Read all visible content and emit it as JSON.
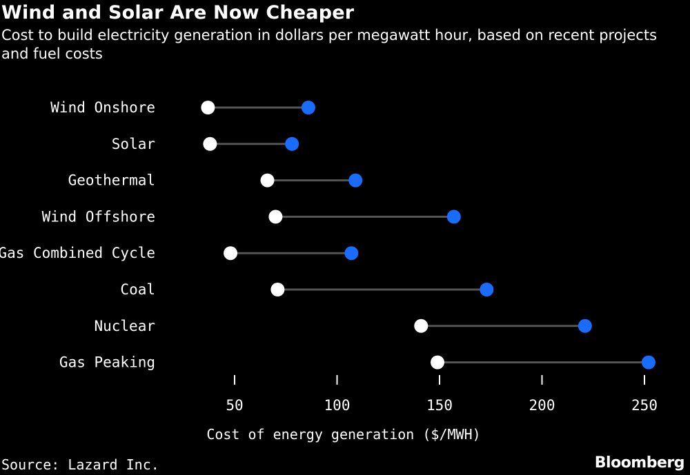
{
  "title": "Wind and Solar Are Now Cheaper",
  "subtitle": "Cost to build electricity generation in dollars per megawatt hour, based on recent projects and fuel costs",
  "source": "Source: Lazard Inc.",
  "brand": "Bloomberg",
  "colors": {
    "background": "#000000",
    "low": "#ffffff",
    "high": "#1a6cff",
    "connector": "#555555"
  },
  "chart_data": {
    "type": "dumbbell",
    "xlabel": "Cost of energy generation ($/MWH)",
    "xlim": [
      30,
      255
    ],
    "xticks": [
      50,
      100,
      150,
      200,
      250
    ],
    "categories": [
      "Wind Onshore",
      "Solar",
      "Geothermal",
      "Wind Offshore",
      "Gas Combined Cycle",
      "Coal",
      "Nuclear",
      "Gas Peaking"
    ],
    "low": [
      37,
      38,
      66,
      70,
      48,
      71,
      141,
      149
    ],
    "high": [
      86,
      78,
      109,
      157,
      107,
      173,
      221,
      252
    ],
    "grid": false
  }
}
